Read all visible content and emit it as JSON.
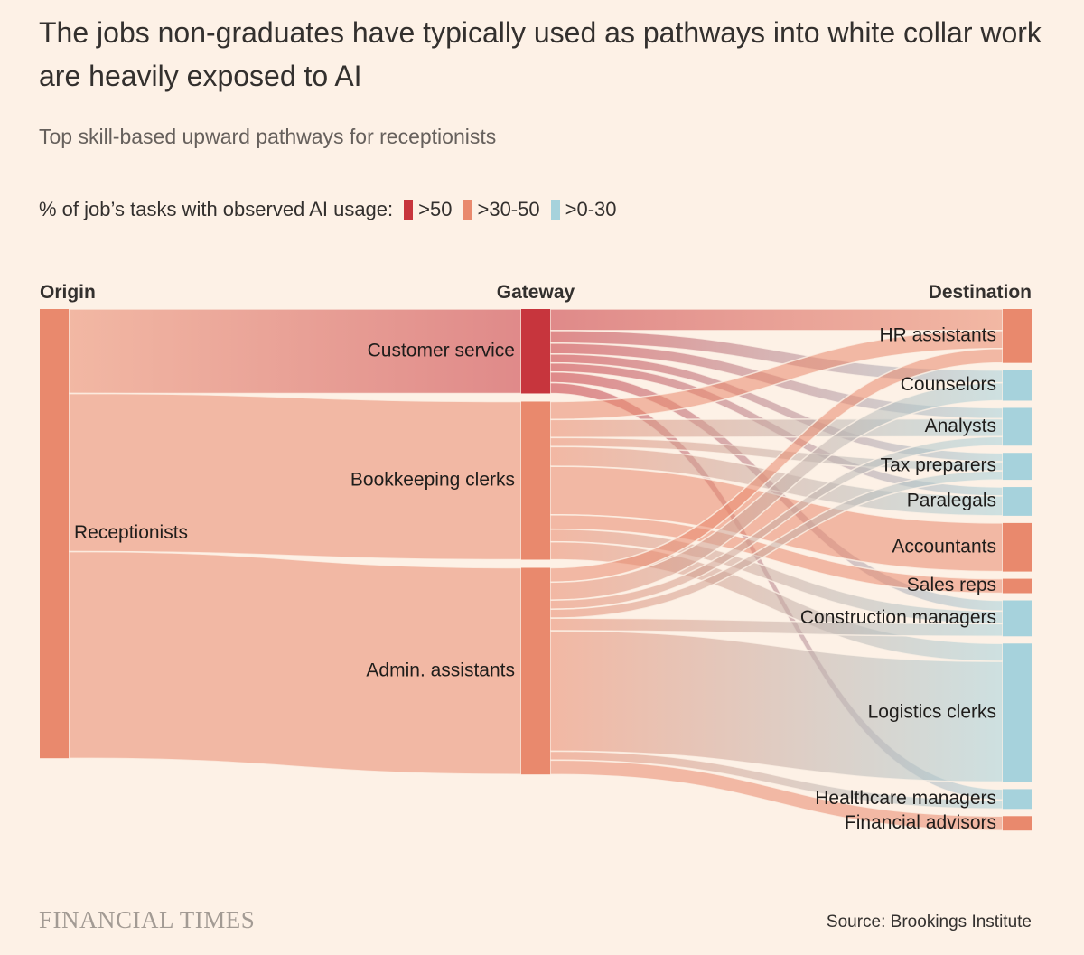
{
  "title": "The jobs non-graduates have typically used as pathways into white collar work are heavily exposed to AI",
  "subtitle": "Top skill-based upward pathways for receptionists",
  "legend": {
    "label": "% of job’s tasks with observed AI usage:",
    "items": [
      {
        "label": ">50",
        "color": "#c7353d"
      },
      {
        "label": ">30-50",
        "color": "#e9896d"
      },
      {
        "label": ">0-30",
        "color": "#a6d2dc"
      }
    ]
  },
  "brand": "FINANCIAL TIMES",
  "source": "Source: Brookings Institute",
  "chart_data": {
    "type": "sankey",
    "column_labels": {
      "origin": "Origin",
      "gateway": "Gateway",
      "destination": "Destination"
    },
    "nodes": [
      {
        "id": "receptionists",
        "label": "Receptionists",
        "column": "origin",
        "category": ">30-50"
      },
      {
        "id": "customer_service",
        "label": "Customer service",
        "column": "gateway",
        "category": ">50"
      },
      {
        "id": "bookkeeping",
        "label": "Bookkeeping clerks",
        "column": "gateway",
        "category": ">30-50"
      },
      {
        "id": "admin",
        "label": "Admin. assistants",
        "column": "gateway",
        "category": ">30-50"
      },
      {
        "id": "hr",
        "label": "HR assistants",
        "column": "destination",
        "category": ">30-50"
      },
      {
        "id": "counselors",
        "label": "Counselors",
        "column": "destination",
        "category": ">0-30"
      },
      {
        "id": "analysts",
        "label": "Analysts",
        "column": "destination",
        "category": ">0-30"
      },
      {
        "id": "tax",
        "label": "Tax preparers",
        "column": "destination",
        "category": ">0-30"
      },
      {
        "id": "paralegals",
        "label": "Paralegals",
        "column": "destination",
        "category": ">0-30"
      },
      {
        "id": "accountants",
        "label": "Accountants",
        "column": "destination",
        "category": ">30-50"
      },
      {
        "id": "sales",
        "label": "Sales reps",
        "column": "destination",
        "category": ">30-50"
      },
      {
        "id": "construction",
        "label": "Construction managers",
        "column": "destination",
        "category": ">0-30"
      },
      {
        "id": "logistics",
        "label": "Logistics clerks",
        "column": "destination",
        "category": ">0-30"
      },
      {
        "id": "healthcare",
        "label": "Healthcare managers",
        "column": "destination",
        "category": ">0-30"
      },
      {
        "id": "financial",
        "label": "Financial advisors",
        "column": "destination",
        "category": ">30-50"
      }
    ],
    "links": [
      {
        "source": "receptionists",
        "target": "customer_service",
        "value": 94
      },
      {
        "source": "receptionists",
        "target": "bookkeeping",
        "value": 176
      },
      {
        "source": "receptionists",
        "target": "admin",
        "value": 230
      },
      {
        "source": "customer_service",
        "target": "hr",
        "value": 24
      },
      {
        "source": "customer_service",
        "target": "counselors",
        "value": 14
      },
      {
        "source": "customer_service",
        "target": "analysts",
        "value": 12
      },
      {
        "source": "customer_service",
        "target": "tax",
        "value": 10
      },
      {
        "source": "customer_service",
        "target": "paralegals",
        "value": 10
      },
      {
        "source": "customer_service",
        "target": "construction",
        "value": 12
      },
      {
        "source": "customer_service",
        "target": "healthcare",
        "value": 12
      },
      {
        "source": "bookkeeping",
        "target": "hr",
        "value": 20
      },
      {
        "source": "bookkeeping",
        "target": "analysts",
        "value": 20
      },
      {
        "source": "bookkeeping",
        "target": "tax",
        "value": 10
      },
      {
        "source": "bookkeeping",
        "target": "paralegals",
        "value": 22
      },
      {
        "source": "bookkeeping",
        "target": "accountants",
        "value": 54
      },
      {
        "source": "bookkeeping",
        "target": "sales",
        "value": 16
      },
      {
        "source": "bookkeeping",
        "target": "construction",
        "value": 14
      },
      {
        "source": "bookkeeping",
        "target": "logistics",
        "value": 20
      },
      {
        "source": "admin",
        "target": "hr",
        "value": 16
      },
      {
        "source": "admin",
        "target": "counselors",
        "value": 20
      },
      {
        "source": "admin",
        "target": "analysts",
        "value": 10
      },
      {
        "source": "admin",
        "target": "tax",
        "value": 10
      },
      {
        "source": "admin",
        "target": "construction",
        "value": 14
      },
      {
        "source": "admin",
        "target": "logistics",
        "value": 134
      },
      {
        "source": "admin",
        "target": "healthcare",
        "value": 10
      },
      {
        "source": "admin",
        "target": "financial",
        "value": 16
      }
    ]
  }
}
